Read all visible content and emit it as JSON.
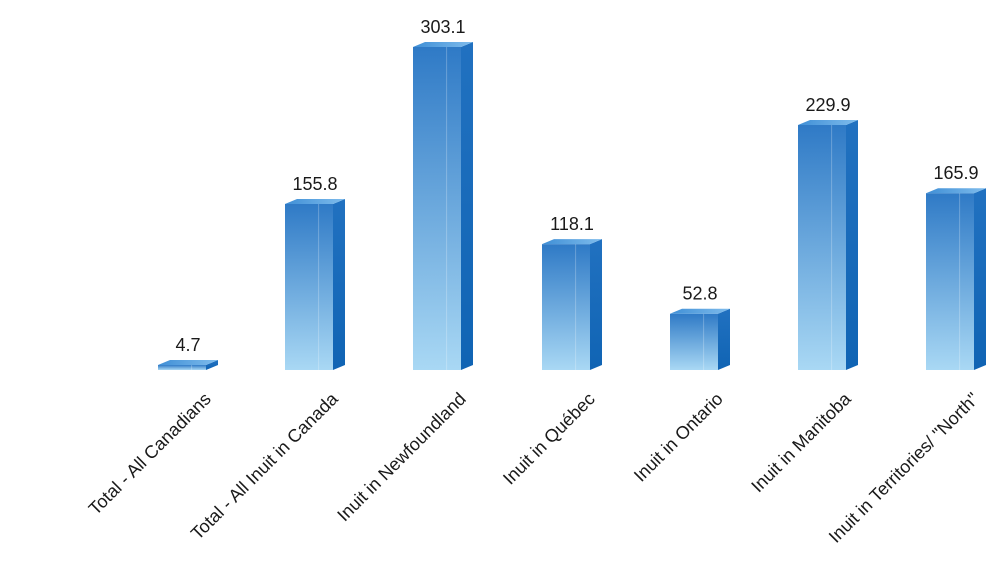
{
  "chart_data": {
    "type": "bar",
    "title": "",
    "xlabel": "",
    "ylabel": "",
    "categories": [
      "Total - All Canadians",
      "Total - All Inuit in Canada",
      "Inuit in Newfoundland",
      "Inuit in Québec",
      "Inuit in Ontario",
      "Inuit in Manitoba",
      "Inuit in Territories/ \"North\""
    ],
    "values": [
      4.7,
      155.8,
      303.1,
      118.1,
      52.8,
      229.9,
      165.9
    ],
    "value_labels": [
      "4.7",
      "155.8",
      "303.1",
      "118.1",
      "52.8",
      "229.9",
      "165.9"
    ],
    "ylim": [
      0,
      303.1
    ],
    "grid": false,
    "legend": "none",
    "style": "3d-column",
    "colors": {
      "front_top": "#2f7ac6",
      "front_bottom": "#a9d8f4",
      "side": "#1670bf",
      "top": "#5aa3e0"
    }
  }
}
